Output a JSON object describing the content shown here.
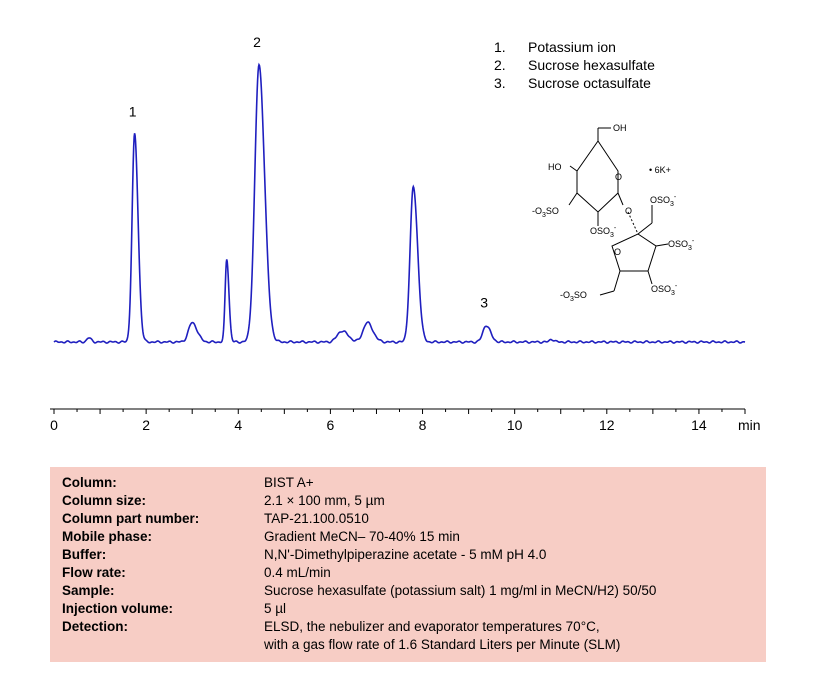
{
  "chart_data": {
    "type": "line",
    "xlabel_unit": "min",
    "xlim": [
      0,
      15
    ],
    "x_ticks": [
      0,
      2,
      4,
      6,
      8,
      10,
      12,
      14
    ],
    "grid": false,
    "baseline": 0,
    "series": [
      {
        "color": "#1f1fbf",
        "peaks": [
          {
            "x": 0.75,
            "height": 0.015,
            "sigma": 0.04
          },
          {
            "x": 1.75,
            "height": 0.75,
            "sigma": 0.055
          },
          {
            "x": 3.0,
            "height": 0.07,
            "sigma": 0.08
          },
          {
            "x": 3.75,
            "height": 0.3,
            "sigma": 0.035
          },
          {
            "x": 4.45,
            "height": 1.0,
            "sigma": 0.09
          },
          {
            "x": 6.25,
            "height": 0.04,
            "sigma": 0.1
          },
          {
            "x": 6.8,
            "height": 0.07,
            "sigma": 0.09
          },
          {
            "x": 7.8,
            "height": 0.56,
            "sigma": 0.07
          },
          {
            "x": 9.38,
            "height": 0.06,
            "sigma": 0.07
          },
          {
            "x": 10.8,
            "height": 0.01,
            "sigma": 0.04
          }
        ]
      }
    ],
    "peak_labels": [
      {
        "label": "1",
        "x": 1.75,
        "value": 0.75
      },
      {
        "label": "2",
        "x": 4.45,
        "value": 1.0
      },
      {
        "label": "3",
        "x": 9.38,
        "value": 0.06
      }
    ],
    "legend": {
      "placement": "top-right",
      "entries": [
        {
          "num": "1.",
          "name": "Potassium ion"
        },
        {
          "num": "2.",
          "name": "Sucrose hexasulfate"
        },
        {
          "num": "3.",
          "name": "Sucrose octasulfate"
        }
      ]
    }
  },
  "structure": {
    "oh_top": "OH",
    "ho_left": "HO",
    "o_ring1": "O",
    "o_link": "O",
    "o_ring2": "O",
    "salt": "• 6K+",
    "oso3_left_pre": "-O",
    "oso3_left_sub": "3",
    "oso3_left_post": "SO",
    "oso3_ring1_pre": "OSO",
    "oso3_ring1_sub": "3",
    "oso3_ring1_sup": "-",
    "oso3_top_pre": "OSO",
    "oso3_top_sub": "3",
    "oso3_top_sup": "-",
    "oso3_right_pre": "OSO",
    "oso3_right_sub": "3",
    "oso3_right_sup": "-",
    "oso3_bottom_pre": "OSO",
    "oso3_bottom_sub": "3",
    "oso3_bottom_sup": "-",
    "oso3_bl_pre": "-O",
    "oso3_bl_sub": "3",
    "oso3_bl_post": "SO"
  },
  "conditions": {
    "column": {
      "label": "Column:",
      "value": "BIST A+"
    },
    "column_size": {
      "label": "Column size:",
      "value": "2.1 × 100 mm, 5 µm"
    },
    "column_part": {
      "label": "Column part number:",
      "value": "TAP-21.100.0510"
    },
    "mobile_phase": {
      "label": "Mobile phase:",
      "value": "Gradient  MeCN– 70-40% 15 min"
    },
    "buffer": {
      "label": "Buffer:",
      "value": "N,N'-Dimethylpiperazine acetate   - 5 mM pH 4.0"
    },
    "flow_rate": {
      "label": "Flow rate:",
      "value": "0.4 mL/min"
    },
    "sample": {
      "label": "Sample:",
      "value": "Sucrose hexasulfate (potassium salt) 1 mg/ml in MeCN/H2) 50/50"
    },
    "injection_volume": {
      "label": "Injection volume:",
      "value": "5  µl"
    },
    "detection": {
      "label": "Detection:",
      "value": "ELSD, the nebulizer and evaporator temperatures 70°C,",
      "value2": "with a gas  flow rate of 1.6 Standard Liters per Minute (SLM)"
    }
  }
}
